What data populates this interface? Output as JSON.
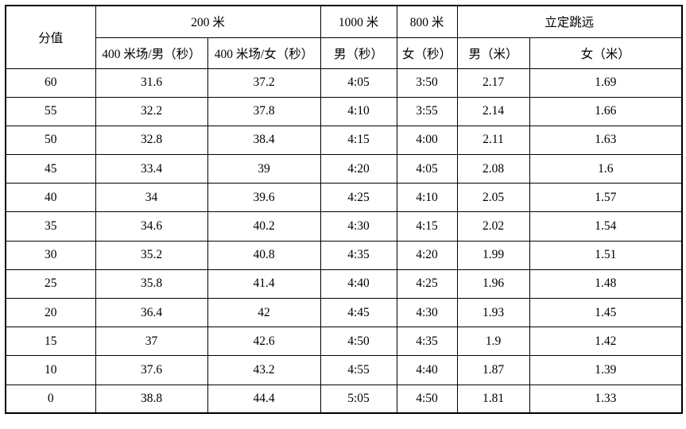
{
  "table": {
    "header": {
      "score_label": "分值",
      "groups": [
        {
          "label": "200 米",
          "colspan": 2
        },
        {
          "label": "1000 米",
          "colspan": 1
        },
        {
          "label": "800 米",
          "colspan": 1
        },
        {
          "label": "立定跳远",
          "colspan": 2
        }
      ],
      "sub_headers": [
        "400 米场/男（秒）",
        "400 米场/女（秒）",
        "男（秒）",
        "女（秒）",
        "男（米）",
        "女（米）"
      ]
    },
    "rows": [
      {
        "score": "60",
        "values": [
          "31.6",
          "37.2",
          "4:05",
          "3:50",
          "2.17",
          "1.69"
        ]
      },
      {
        "score": "55",
        "values": [
          "32.2",
          "37.8",
          "4:10",
          "3:55",
          "2.14",
          "1.66"
        ]
      },
      {
        "score": "50",
        "values": [
          "32.8",
          "38.4",
          "4:15",
          "4:00",
          "2.11",
          "1.63"
        ]
      },
      {
        "score": "45",
        "values": [
          "33.4",
          "39",
          "4:20",
          "4:05",
          "2.08",
          "1.6"
        ]
      },
      {
        "score": "40",
        "values": [
          "34",
          "39.6",
          "4:25",
          "4:10",
          "2.05",
          "1.57"
        ]
      },
      {
        "score": "35",
        "values": [
          "34.6",
          "40.2",
          "4:30",
          "4:15",
          "2.02",
          "1.54"
        ]
      },
      {
        "score": "30",
        "values": [
          "35.2",
          "40.8",
          "4:35",
          "4:20",
          "1.99",
          "1.51"
        ]
      },
      {
        "score": "25",
        "values": [
          "35.8",
          "41.4",
          "4:40",
          "4:25",
          "1.96",
          "1.48"
        ]
      },
      {
        "score": "20",
        "values": [
          "36.4",
          "42",
          "4:45",
          "4:30",
          "1.93",
          "1.45"
        ]
      },
      {
        "score": "15",
        "values": [
          "37",
          "42.6",
          "4:50",
          "4:35",
          "1.9",
          "1.42"
        ]
      },
      {
        "score": "10",
        "values": [
          "37.6",
          "43.2",
          "4:55",
          "4:40",
          "1.87",
          "1.39"
        ]
      },
      {
        "score": "0",
        "values": [
          "38.8",
          "44.4",
          "5:05",
          "4:50",
          "1.81",
          "1.33"
        ]
      }
    ]
  },
  "colors": {
    "border": "#000000",
    "text": "#000000",
    "background": "#ffffff"
  }
}
